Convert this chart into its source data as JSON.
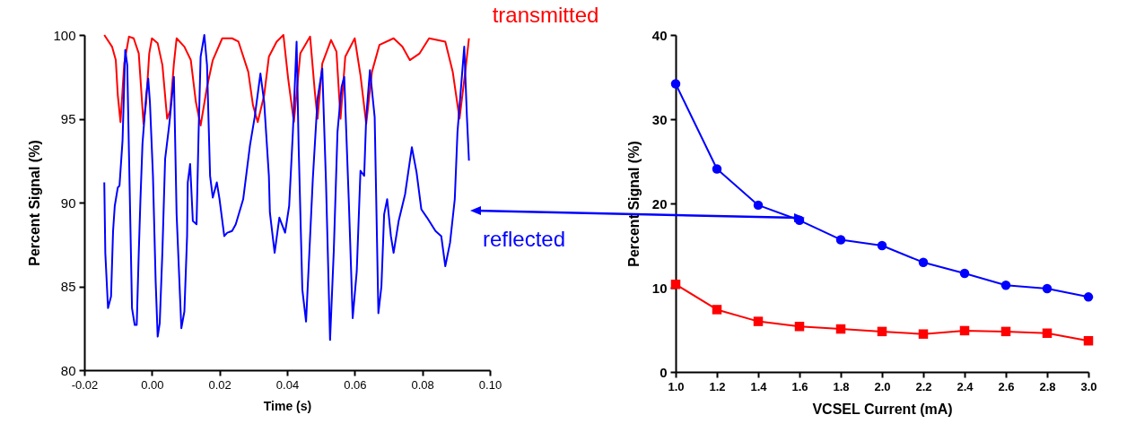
{
  "chart_data": [
    {
      "type": "line",
      "xlabel": "Time (s)",
      "ylabel": "Percent Signal (%)",
      "xlim": [
        -0.02,
        0.1
      ],
      "ylim": [
        80,
        100
      ],
      "xticks": [
        {
          "value": -0.02,
          "label": "-0.02"
        },
        {
          "value": 0,
          "label": "0.00"
        },
        {
          "value": 0.02,
          "label": "0.02"
        },
        {
          "value": 0.04,
          "label": "0.04"
        },
        {
          "value": 0.06,
          "label": "0.06"
        },
        {
          "value": 0.08,
          "label": "0.08"
        },
        {
          "value": 0.1,
          "label": "0.10"
        }
      ],
      "yticks": [
        80,
        85,
        90,
        95,
        100
      ],
      "series": [
        {
          "name": "transmitted",
          "color": "#ff0000",
          "x": [
            -0.0141,
            -0.0118,
            -0.0107,
            -0.0101,
            -0.0093,
            -0.0082,
            -0.0068,
            -0.0054,
            -0.0039,
            -0.0034,
            -0.0025,
            -0.0017,
            -0.0008,
            0.0,
            0.0017,
            0.0031,
            0.0045,
            0.0054,
            0.0065,
            0.0073,
            0.0096,
            0.0115,
            0.013,
            0.0144,
            0.0163,
            0.018,
            0.0208,
            0.0237,
            0.0256,
            0.0285,
            0.0299,
            0.0313,
            0.0332,
            0.0346,
            0.0369,
            0.0389,
            0.0403,
            0.042,
            0.0439,
            0.0468,
            0.0482,
            0.049,
            0.0504,
            0.053,
            0.0546,
            0.0558,
            0.0572,
            0.06,
            0.0617,
            0.0634,
            0.0651,
            0.0673,
            0.0715,
            0.0741,
            0.0763,
            0.0792,
            0.082,
            0.0868,
            0.089,
            0.091,
            0.0927,
            0.0938
          ],
          "values": [
            100,
            99.3,
            98.5,
            96.4,
            94.8,
            98.3,
            99.9,
            99.8,
            98.9,
            97.4,
            94.7,
            96.0,
            98.9,
            99.8,
            99.5,
            98.2,
            95.0,
            95.5,
            98.3,
            99.8,
            99.3,
            98.5,
            96.0,
            94.6,
            96.9,
            98.5,
            99.8,
            99.8,
            99.6,
            97.8,
            95.8,
            94.8,
            96.4,
            98.7,
            99.6,
            100,
            97.4,
            94.8,
            98.9,
            99.9,
            96.6,
            95.0,
            98.3,
            99.7,
            99.0,
            95.0,
            98.7,
            99.8,
            97.6,
            94.7,
            97.8,
            99.4,
            99.8,
            99.3,
            98.5,
            98.9,
            99.8,
            99.6,
            97.8,
            95.0,
            97.8,
            99.8
          ]
        },
        {
          "name": "reflected",
          "color": "#0000ff",
          "x": [
            -0.0141,
            -0.0138,
            -0.013,
            -0.0121,
            -0.0115,
            -0.011,
            -0.0101,
            -0.0096,
            -0.0087,
            -0.0079,
            -0.0073,
            -0.0068,
            -0.0059,
            -0.0051,
            -0.0045,
            -0.0039,
            -0.0034,
            -0.0028,
            -0.0017,
            -0.0011,
            -0.0006,
            0.0003,
            0.0011,
            0.0017,
            0.0023,
            0.0031,
            0.0039,
            0.0051,
            0.0065,
            0.0073,
            0.0087,
            0.0096,
            0.0104,
            0.0106,
            0.0113,
            0.0121,
            0.0132,
            0.0138,
            0.0144,
            0.0155,
            0.0163,
            0.0172,
            0.018,
            0.0192,
            0.02,
            0.0214,
            0.0223,
            0.0237,
            0.0248,
            0.027,
            0.029,
            0.0304,
            0.0321,
            0.0332,
            0.0346,
            0.0349,
            0.0363,
            0.0377,
            0.0394,
            0.0406,
            0.0417,
            0.0428,
            0.0434,
            0.0445,
            0.0456,
            0.0465,
            0.0476,
            0.049,
            0.0504,
            0.0515,
            0.0527,
            0.0538,
            0.0549,
            0.0561,
            0.0569,
            0.0583,
            0.0594,
            0.0606,
            0.0617,
            0.0628,
            0.0634,
            0.0645,
            0.0659,
            0.067,
            0.0679,
            0.0687,
            0.0696,
            0.0707,
            0.0715,
            0.073,
            0.0749,
            0.0769,
            0.0783,
            0.0797,
            0.0814,
            0.0839,
            0.0856,
            0.0868,
            0.0882,
            0.0896,
            0.0904,
            0.0924,
            0.0932,
            0.0938
          ],
          "values": [
            91.2,
            87.0,
            83.7,
            84.4,
            88.3,
            89.8,
            90.9,
            91.0,
            93.7,
            99.1,
            98.2,
            93.0,
            83.7,
            82.7,
            82.7,
            87.0,
            90.2,
            93.5,
            96.4,
            97.4,
            96.0,
            91.6,
            85.3,
            82.0,
            82.8,
            87.1,
            92.6,
            94.6,
            97.5,
            89.3,
            82.5,
            83.5,
            88.0,
            91.2,
            92.3,
            88.9,
            88.7,
            94.1,
            98.7,
            100,
            98.2,
            91.6,
            90.3,
            91.2,
            90.2,
            88.0,
            88.2,
            88.3,
            88.7,
            90.2,
            93.4,
            95.1,
            97.7,
            96.0,
            91.6,
            89.4,
            87.0,
            89.1,
            88.2,
            89.8,
            94.2,
            99.6,
            93.4,
            84.8,
            82.9,
            86.7,
            91.4,
            96.2,
            98.0,
            91.2,
            81.8,
            87.1,
            94.2,
            96.9,
            97.5,
            89.8,
            83.1,
            85.9,
            91.9,
            91.6,
            95.1,
            97.9,
            95.1,
            83.4,
            85.0,
            89.3,
            90.2,
            88.0,
            87.0,
            88.9,
            90.5,
            93.3,
            91.8,
            89.6,
            89.1,
            88.3,
            88.0,
            86.2,
            87.6,
            90.2,
            94.2,
            99.3,
            95.1,
            92.5
          ]
        }
      ]
    },
    {
      "type": "line",
      "xlabel": "VCSEL Current (mA)",
      "ylabel": "Percent Signal (%)",
      "xlim": [
        1.0,
        3.0
      ],
      "ylim": [
        0,
        40
      ],
      "xticks": [
        {
          "value": 1.0,
          "label": "1.0"
        },
        {
          "value": 1.2,
          "label": "1.2"
        },
        {
          "value": 1.4,
          "label": "1.4"
        },
        {
          "value": 1.6,
          "label": "1.6"
        },
        {
          "value": 1.8,
          "label": "1.8"
        },
        {
          "value": 2.0,
          "label": "2.0"
        },
        {
          "value": 2.2,
          "label": "2.2"
        },
        {
          "value": 2.4,
          "label": "2.4"
        },
        {
          "value": 2.6,
          "label": "2.6"
        },
        {
          "value": 2.8,
          "label": "2.8"
        },
        {
          "value": 3.0,
          "label": "3.0"
        }
      ],
      "yticks": [
        0,
        10,
        20,
        30,
        40
      ],
      "x": [
        1.0,
        1.2,
        1.4,
        1.6,
        1.8,
        2.0,
        2.2,
        2.4,
        2.6,
        2.8,
        3.0
      ],
      "series": [
        {
          "color": "#0000ff",
          "marker": "circle",
          "values": [
            34.2,
            24.1,
            19.8,
            18.0,
            15.7,
            15.0,
            13.0,
            11.7,
            10.3,
            9.9,
            8.9
          ]
        },
        {
          "color": "#ff0000",
          "marker": "square",
          "values": [
            10.4,
            7.4,
            6.0,
            5.4,
            5.1,
            4.8,
            4.5,
            4.9,
            4.8,
            4.6,
            3.7
          ]
        }
      ]
    }
  ]
}
